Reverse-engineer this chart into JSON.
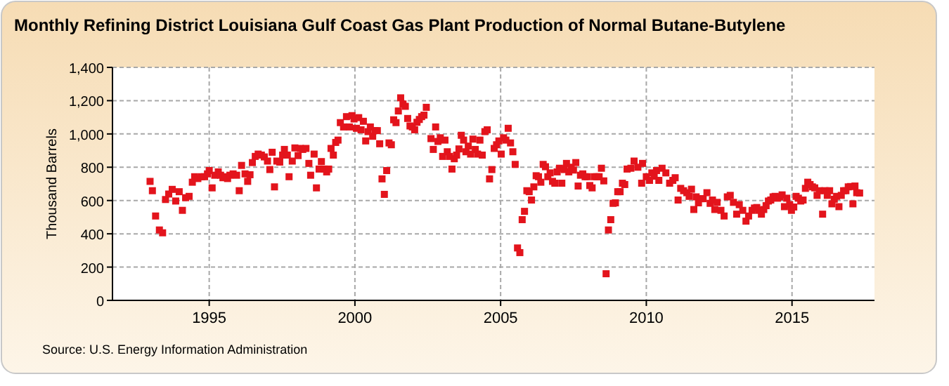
{
  "chart_data": {
    "type": "scatter",
    "title": "Monthly Refining District Louisiana Gulf Coast Gas Plant Production of Normal Butane-Butylene",
    "ylabel": "Thousand Barrels",
    "annotations": [
      "Source: U.S. Energy Information Administration"
    ],
    "x": [
      1992.97,
      1993.05,
      1993.16,
      1993.29,
      1993.4,
      1993.5,
      1993.61,
      1993.73,
      1993.85,
      1993.97,
      1994.08,
      1994.19,
      1994.31,
      1994.42,
      1994.5,
      1994.61,
      1994.74,
      1994.84,
      1994.94,
      1995.0,
      1995.1,
      1995.19,
      1995.31,
      1995.39,
      1995.47,
      1995.55,
      1995.63,
      1995.71,
      1995.82,
      1995.94,
      1996.03,
      1996.11,
      1996.23,
      1996.32,
      1996.4,
      1996.48,
      1996.58,
      1996.68,
      1996.79,
      1996.89,
      1997.0,
      1997.08,
      1997.16,
      1997.24,
      1997.32,
      1997.42,
      1997.52,
      1997.58,
      1997.68,
      1997.74,
      1997.85,
      1997.94,
      1998.05,
      1998.13,
      1998.21,
      1998.32,
      1998.42,
      1998.48,
      1998.6,
      1998.68,
      1998.77,
      1998.85,
      1998.94,
      1999.03,
      1999.1,
      1999.18,
      1999.26,
      1999.34,
      1999.42,
      1999.5,
      1999.61,
      1999.71,
      1999.81,
      1999.9,
      1999.97,
      2000.05,
      2000.13,
      2000.21,
      2000.29,
      2000.37,
      2000.45,
      2000.53,
      2000.61,
      2000.69,
      2000.77,
      2000.85,
      2000.93,
      2001.01,
      2001.09,
      2001.17,
      2001.25,
      2001.33,
      2001.41,
      2001.49,
      2001.57,
      2001.65,
      2001.73,
      2001.81,
      2001.89,
      2001.97,
      2002.05,
      2002.13,
      2002.21,
      2002.29,
      2002.37,
      2002.45,
      2002.61,
      2002.69,
      2002.77,
      2002.85,
      2002.93,
      2003.01,
      2003.09,
      2003.17,
      2003.25,
      2003.33,
      2003.41,
      2003.49,
      2003.57,
      2003.65,
      2003.73,
      2003.81,
      2003.89,
      2003.97,
      2004.05,
      2004.13,
      2004.21,
      2004.29,
      2004.37,
      2004.46,
      2004.54,
      2004.62,
      2004.7,
      2004.78,
      2004.86,
      2004.94,
      2005.02,
      2005.1,
      2005.18,
      2005.26,
      2005.34,
      2005.42,
      2005.5,
      2005.58,
      2005.66,
      2005.74,
      2005.82,
      2005.9,
      2005.98,
      2006.06,
      2006.14,
      2006.22,
      2006.3,
      2006.38,
      2006.46,
      2006.54,
      2006.62,
      2006.7,
      2006.78,
      2006.86,
      2006.94,
      2007.02,
      2007.1,
      2007.18,
      2007.26,
      2007.34,
      2007.42,
      2007.5,
      2007.58,
      2007.66,
      2007.74,
      2007.82,
      2007.9,
      2007.98,
      2008.06,
      2008.14,
      2008.22,
      2008.3,
      2008.38,
      2008.46,
      2008.54,
      2008.62,
      2008.7,
      2008.78,
      2008.86,
      2008.94,
      2009.02,
      2009.1,
      2009.18,
      2009.26,
      2009.34,
      2009.47,
      2009.58,
      2009.71,
      2009.84,
      2009.87,
      2010.0,
      2010.11,
      2010.19,
      2010.27,
      2010.35,
      2010.43,
      2010.54,
      2010.67,
      2010.8,
      2010.91,
      2010.99,
      2011.09,
      2011.18,
      2011.28,
      2011.39,
      2011.47,
      2011.55,
      2011.63,
      2011.71,
      2011.79,
      2011.87,
      2011.95,
      2012.08,
      2012.19,
      2012.27,
      2012.35,
      2012.43,
      2012.56,
      2012.67,
      2012.78,
      2012.88,
      2012.99,
      2013.1,
      2013.19,
      2013.31,
      2013.42,
      2013.51,
      2013.63,
      2013.71,
      2013.79,
      2013.87,
      2013.95,
      2014.03,
      2014.11,
      2014.19,
      2014.27,
      2014.35,
      2014.42,
      2014.5,
      2014.58,
      2014.66,
      2014.74,
      2014.82,
      2014.92,
      2014.98,
      2015.06,
      2015.14,
      2015.22,
      2015.3,
      2015.38,
      2015.46,
      2015.54,
      2015.62,
      2015.7,
      2015.78,
      2015.86,
      2015.94,
      2016.05,
      2016.13,
      2016.21,
      2016.29,
      2016.37,
      2016.45,
      2016.53,
      2016.61,
      2016.69,
      2016.77,
      2016.85,
      2016.93,
      2017.01,
      2017.09,
      2017.16,
      2017.22,
      2017.32
    ],
    "series": [
      {
        "color": "#e3141c",
        "values": [
          715,
          659,
          507,
          423,
          406,
          606,
          639,
          667,
          597,
          653,
          541,
          617,
          625,
          710,
          743,
          732,
          743,
          743,
          760,
          780,
          676,
          752,
          772,
          752,
          737,
          743,
          732,
          752,
          760,
          752,
          659,
          811,
          760,
          715,
          755,
          828,
          865,
          879,
          873,
          862,
          837,
          786,
          890,
          682,
          837,
          831,
          873,
          907,
          873,
          743,
          837,
          916,
          870,
          913,
          907,
          913,
          823,
          752,
          879,
          676,
          789,
          834,
          789,
          772,
          789,
          913,
          873,
          949,
          963,
          1068,
          1042,
          1104,
          1042,
          1110,
          1090,
          1034,
          1098,
          1025,
          1076,
          958,
          1014,
          1042,
          986,
          1020,
          1020,
          941,
          730,
          637,
          780,
          946,
          935,
          1085,
          1068,
          1138,
          1217,
          1180,
          1166,
          1093,
          1048,
          1042,
          1025,
          1070,
          1087,
          1104,
          1113,
          1160,
          972,
          907,
          1042,
          955,
          977,
          865,
          963,
          893,
          865,
          789,
          851,
          873,
          910,
          992,
          963,
          893,
          927,
          879,
          969,
          907,
          879,
          963,
          873,
          1014,
          1025,
          730,
          786,
          913,
          935,
          958,
          879,
          977,
          963,
          1034,
          946,
          893,
          817,
          315,
          287,
          485,
          535,
          659,
          653,
          603,
          682,
          749,
          743,
          710,
          817,
          803,
          743,
          766,
          715,
          704,
          772,
          794,
          704,
          786,
          823,
          772,
          800,
          783,
          828,
          687,
          752,
          760,
          743,
          743,
          690,
          676,
          743,
          743,
          743,
          794,
          718,
          160,
          423,
          485,
          583,
          586,
          653,
          653,
          704,
          696,
          789,
          794,
          837,
          800,
          704,
          823,
          743,
          721,
          766,
          746,
          780,
          721,
          794,
          766,
          704,
          721,
          737,
          603,
          673,
          659,
          647,
          625,
          668,
          546,
          622,
          586,
          611,
          611,
          647,
          583,
          603,
          546,
          589,
          541,
          507,
          622,
          631,
          589,
          518,
          575,
          541,
          476,
          507,
          541,
          555,
          558,
          541,
          518,
          546,
          569,
          597,
          603,
          622,
          625,
          614,
          622,
          634,
          563,
          614,
          575,
          541,
          561,
          625,
          614,
          597,
          603,
          673,
          710,
          696,
          682,
          676,
          631,
          659,
          518,
          659,
          631,
          659,
          580,
          608,
          625,
          563,
          631,
          659,
          659,
          682,
          684,
          580,
          687,
          647,
          645
        ]
      }
    ],
    "xlim": [
      1991.68,
      2017.83
    ],
    "xticks": [
      1995,
      2000,
      2005,
      2010,
      2015
    ],
    "ylim": [
      0,
      1400
    ],
    "yticks": [
      0,
      {
        "value": 200,
        "label": "200"
      },
      {
        "value": 400,
        "label": "400"
      },
      {
        "value": 600,
        "label": "600"
      },
      {
        "value": 800,
        "label": "800"
      },
      {
        "value": 1000,
        "label": "1,000"
      },
      {
        "value": 1200,
        "label": "1,200"
      },
      {
        "value": 1400,
        "label": "1,400"
      }
    ],
    "grid": true,
    "marker": "square"
  }
}
